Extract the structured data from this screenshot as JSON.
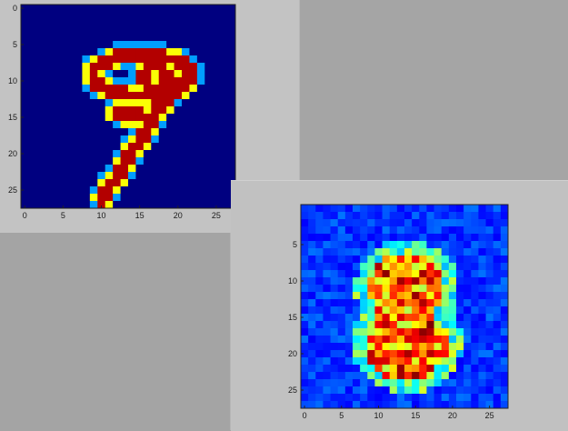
{
  "chart_data": [
    {
      "type": "heatmap",
      "title": "",
      "xlabel": "",
      "ylabel": "",
      "colormap": "jet",
      "xlim": [
        -0.5,
        27.5
      ],
      "ylim": [
        27.5,
        -0.5
      ],
      "x_ticks": [
        "0",
        "5",
        "10",
        "15",
        "20",
        "25"
      ],
      "y_ticks": [
        "0",
        "5",
        "10",
        "15",
        "20",
        "25"
      ],
      "description_content": "28x28 handwritten digit",
      "digit": "9"
    },
    {
      "type": "heatmap",
      "title": "",
      "xlabel": "",
      "ylabel": "",
      "colormap": "jet",
      "xlim": [
        -0.5,
        27.5
      ],
      "ylim": [
        27.5,
        -0.5
      ],
      "x_ticks": [
        "0",
        "5",
        "10",
        "15",
        "20",
        "25"
      ],
      "y_ticks": [
        "5",
        "10",
        "15",
        "20",
        "25"
      ],
      "description_content": "28x28 noisy generated digit",
      "digit": "8"
    }
  ]
}
